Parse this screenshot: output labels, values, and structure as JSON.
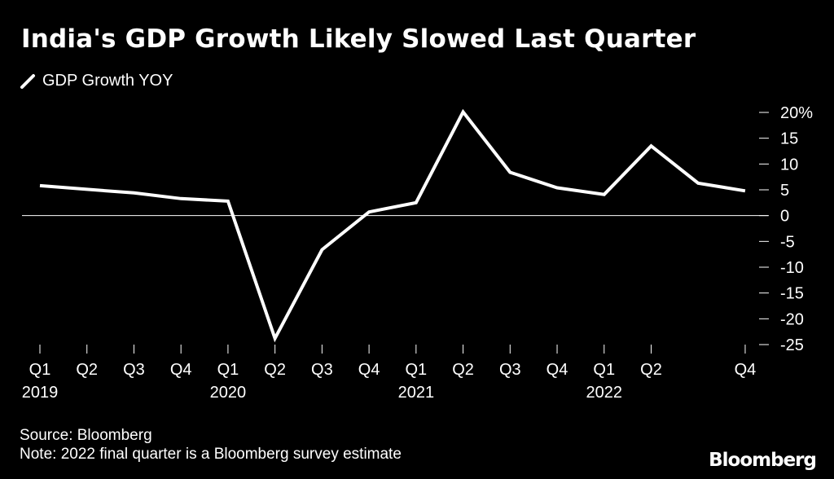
{
  "header": {
    "title": "India's GDP Growth Likely Slowed Last Quarter"
  },
  "legend": {
    "label": "GDP Growth YOY"
  },
  "footer": {
    "source": "Source: Bloomberg",
    "note": "Note: 2022 final quarter is a Bloomberg survey estimate"
  },
  "brand": {
    "logo_text": "Bloomberg"
  },
  "colors": {
    "background": "#000000",
    "line": "#ffffff",
    "zero_line": "#ffffff"
  },
  "chart_data": {
    "type": "line",
    "title": "India's GDP Growth Likely Slowed Last Quarter",
    "xlabel": "",
    "ylabel": "",
    "ylim": [
      -25,
      20
    ],
    "yticks": [
      20,
      15,
      10,
      5,
      0,
      -5,
      -10,
      -15,
      -20,
      -25
    ],
    "ytick_labels": [
      "20%",
      "15",
      "10",
      "5",
      "0",
      "-5",
      "-10",
      "-15",
      "-20",
      "-25"
    ],
    "quarter_labels": [
      "Q1",
      "Q2",
      "Q3",
      "Q4",
      "Q1",
      "Q2",
      "Q3",
      "Q4",
      "Q1",
      "Q2",
      "Q3",
      "Q4",
      "Q1",
      "Q2",
      "",
      "Q4"
    ],
    "year_labels": [
      {
        "index": 0,
        "label": "2019"
      },
      {
        "index": 4,
        "label": "2020"
      },
      {
        "index": 8,
        "label": "2021"
      },
      {
        "index": 12,
        "label": "2022"
      }
    ],
    "series": [
      {
        "name": "GDP Growth YOY",
        "values": [
          5.8,
          5.1,
          4.4,
          3.3,
          2.8,
          -23.8,
          -6.6,
          0.7,
          2.5,
          20.1,
          8.4,
          5.4,
          4.1,
          13.5,
          6.3,
          4.8
        ]
      }
    ]
  }
}
